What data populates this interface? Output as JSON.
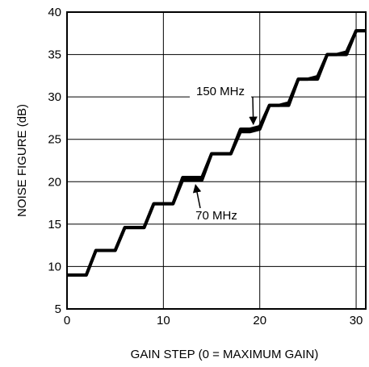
{
  "chart_data": {
    "type": "line",
    "title": "",
    "xlabel": "GAIN STEP (0 = MAXIMUM GAIN)",
    "ylabel": "NOISE FIGURE (dB)",
    "xlim": [
      0,
      31
    ],
    "ylim": [
      5,
      40
    ],
    "xticks": [
      0,
      10,
      20,
      30
    ],
    "yticks": [
      5,
      10,
      15,
      20,
      25,
      30,
      35,
      40
    ],
    "grid": true,
    "series": [
      {
        "name": "150 MHz",
        "x": [
          0,
          1,
          2,
          3,
          4,
          5,
          6,
          7,
          8,
          9,
          10,
          11,
          12,
          13,
          14,
          15,
          16,
          17,
          18,
          19,
          20,
          21,
          22,
          23,
          24,
          25,
          26,
          27,
          28,
          29,
          30,
          31
        ],
        "y": [
          9.0,
          9.0,
          9.0,
          11.9,
          11.9,
          11.9,
          14.6,
          14.6,
          14.6,
          17.4,
          17.4,
          17.4,
          20.5,
          20.5,
          20.5,
          23.3,
          23.3,
          23.3,
          26.2,
          26.2,
          26.5,
          29.0,
          29.0,
          29.3,
          32.1,
          32.1,
          32.4,
          35.0,
          35.0,
          35.3,
          37.8,
          37.8
        ]
      },
      {
        "name": "70 MHz",
        "x": [
          0,
          1,
          2,
          3,
          4,
          5,
          6,
          7,
          8,
          9,
          10,
          11,
          12,
          13,
          14,
          15,
          16,
          17,
          18,
          19,
          20,
          21,
          22,
          23,
          24,
          25,
          26,
          27,
          28,
          29,
          30,
          31
        ],
        "y": [
          9.0,
          9.0,
          9.0,
          11.9,
          11.9,
          11.9,
          14.6,
          14.6,
          14.6,
          17.4,
          17.4,
          17.4,
          20.2,
          20.2,
          20.2,
          23.3,
          23.3,
          23.3,
          25.9,
          25.9,
          26.2,
          29.0,
          29.0,
          29.0,
          32.1,
          32.1,
          32.1,
          35.0,
          35.0,
          35.0,
          37.8,
          37.8
        ]
      }
    ],
    "annotations": [
      {
        "text": "150 MHz",
        "target": [
          19,
          26.2
        ]
      },
      {
        "text": "70 MHz",
        "target": [
          13,
          20.2
        ]
      }
    ]
  }
}
